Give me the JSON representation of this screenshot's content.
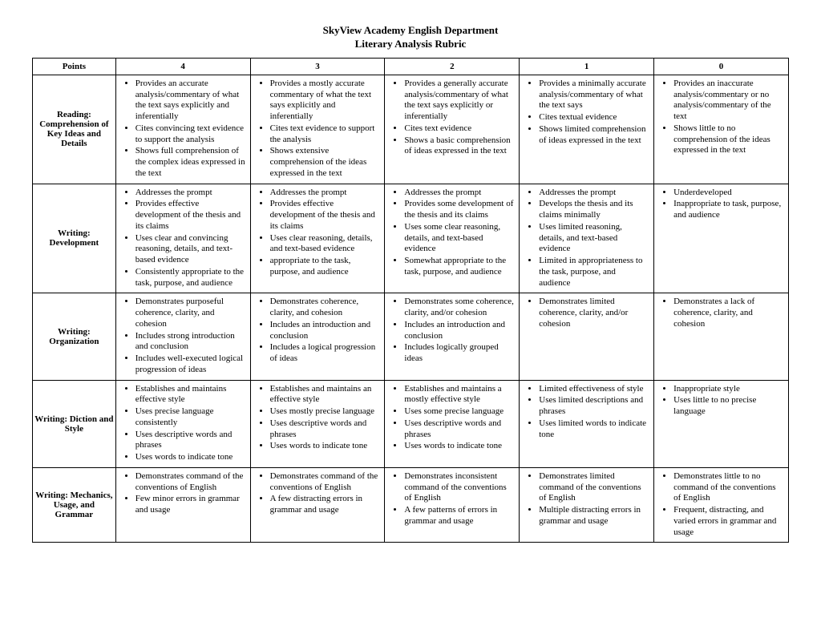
{
  "header": {
    "line1": "SkyView Academy English Department",
    "line2": "Literary Analysis Rubric"
  },
  "columns": [
    "Points",
    "4",
    "3",
    "2",
    "1",
    "0"
  ],
  "rows": [
    {
      "label": "Reading: Comprehension of Key Ideas and Details",
      "cells": [
        [
          "Provides an accurate analysis/commentary of what the text says explicitly and inferentially",
          "Cites convincing text evidence to support the analysis",
          "Shows full comprehension of the complex ideas expressed in the text"
        ],
        [
          "Provides a mostly accurate commentary of what the text says explicitly and inferentially",
          "Cites text evidence to support the analysis",
          "Shows extensive comprehension of the ideas expressed in the text"
        ],
        [
          "Provides a generally accurate analysis/commentary of what the text says explicitly or inferentially",
          "Cites text evidence",
          "Shows a basic comprehension of ideas expressed in the text"
        ],
        [
          "Provides a minimally accurate analysis/commentary of what the text says",
          "Cites textual evidence",
          "Shows limited comprehension of ideas expressed in the text"
        ],
        [
          "Provides an inaccurate analysis/commentary or no analysis/commentary of the text",
          "Shows little to no comprehension of the ideas expressed in the text"
        ]
      ]
    },
    {
      "label": "Writing: Development",
      "cells": [
        [
          "Addresses the prompt",
          "Provides effective development of the thesis and its claims",
          "Uses clear and convincing reasoning, details, and text-based evidence",
          "Consistently appropriate to the task, purpose, and audience"
        ],
        [
          "Addresses the prompt",
          "Provides effective development of the thesis and its claims",
          "Uses clear reasoning, details, and text-based evidence",
          "appropriate to the task, purpose, and audience"
        ],
        [
          "Addresses the prompt",
          "Provides some development of the thesis and its claims",
          "Uses some clear reasoning, details, and text-based evidence",
          "Somewhat appropriate to the task, purpose, and audience"
        ],
        [
          "Addresses the prompt",
          "Develops the thesis and its claims minimally",
          "Uses limited reasoning, details, and text-based evidence",
          "Limited in appropriateness to the task, purpose, and audience"
        ],
        [
          "Underdeveloped",
          "Inappropriate to task, purpose, and audience"
        ]
      ]
    },
    {
      "label": "Writing: Organization",
      "cells": [
        [
          "Demonstrates purposeful coherence, clarity, and cohesion",
          "Includes strong introduction and conclusion",
          "Includes well-executed logical progression of ideas"
        ],
        [
          "Demonstrates coherence, clarity, and cohesion",
          "Includes an introduction and conclusion",
          "Includes a logical progression of ideas"
        ],
        [
          "Demonstrates some coherence, clarity, and/or cohesion",
          "Includes an introduction and conclusion",
          "Includes logically grouped ideas"
        ],
        [
          "Demonstrates limited coherence, clarity, and/or cohesion"
        ],
        [
          "Demonstrates a lack of coherence, clarity, and cohesion"
        ]
      ]
    },
    {
      "label": "Writing: Diction and Style",
      "cells": [
        [
          "Establishes and maintains effective style",
          "Uses precise language consistently",
          "Uses descriptive words and phrases",
          "Uses words to indicate tone"
        ],
        [
          "Establishes and maintains an effective style",
          "Uses mostly precise language",
          "Uses descriptive words and phrases",
          "Uses words to indicate tone"
        ],
        [
          "Establishes and maintains a mostly effective style",
          "Uses some precise language",
          "Uses descriptive words and phrases",
          "Uses words to indicate tone"
        ],
        [
          "Limited effectiveness of style",
          "Uses limited descriptions and phrases",
          "Uses limited words to indicate tone"
        ],
        [
          "Inappropriate style",
          "Uses little to no precise language"
        ]
      ]
    },
    {
      "label": "Writing: Mechanics, Usage, and Grammar",
      "cells": [
        [
          "Demonstrates command of the conventions of English",
          "Few minor errors in grammar and usage"
        ],
        [
          "Demonstrates command of the conventions of English",
          "A few distracting errors in grammar and usage"
        ],
        [
          "Demonstrates inconsistent command of the conventions of English",
          "A few patterns of errors in grammar and usage"
        ],
        [
          "Demonstrates limited command of the conventions of English",
          "Multiple distracting errors in grammar and usage"
        ],
        [
          "Demonstrates little to no command of the conventions of English",
          "Frequent, distracting, and varied errors in grammar and usage"
        ]
      ]
    }
  ]
}
